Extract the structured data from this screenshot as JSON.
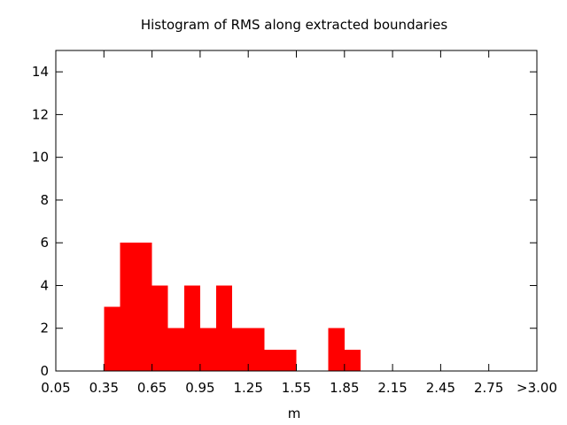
{
  "chart_data": {
    "type": "bar",
    "title": "Histogram of RMS along extracted boundaries",
    "xlabel": "m",
    "ylabel": "",
    "bar_color": "#ff0000",
    "bin_width": 0.1,
    "xlim": [
      0.05,
      3.05
    ],
    "ylim": [
      0,
      15
    ],
    "x_ticks": [
      {
        "value": 0.05,
        "label": "0.05"
      },
      {
        "value": 0.35,
        "label": "0.35"
      },
      {
        "value": 0.65,
        "label": "0.65"
      },
      {
        "value": 0.95,
        "label": "0.95"
      },
      {
        "value": 1.25,
        "label": "1.25"
      },
      {
        "value": 1.55,
        "label": "1.55"
      },
      {
        "value": 1.85,
        "label": "1.85"
      },
      {
        "value": 2.15,
        "label": "2.15"
      },
      {
        "value": 2.45,
        "label": "2.45"
      },
      {
        "value": 2.75,
        "label": "2.75"
      },
      {
        "value": 3.05,
        "label": ">3.00"
      }
    ],
    "y_ticks": [
      0,
      2,
      4,
      6,
      8,
      10,
      12,
      14
    ],
    "bins": [
      {
        "start": 0.35,
        "end": 0.45,
        "count": 3
      },
      {
        "start": 0.45,
        "end": 0.55,
        "count": 6
      },
      {
        "start": 0.55,
        "end": 0.65,
        "count": 6
      },
      {
        "start": 0.65,
        "end": 0.75,
        "count": 4
      },
      {
        "start": 0.75,
        "end": 0.85,
        "count": 2
      },
      {
        "start": 0.85,
        "end": 0.95,
        "count": 4
      },
      {
        "start": 0.95,
        "end": 1.05,
        "count": 2
      },
      {
        "start": 1.05,
        "end": 1.15,
        "count": 4
      },
      {
        "start": 1.15,
        "end": 1.25,
        "count": 2
      },
      {
        "start": 1.25,
        "end": 1.35,
        "count": 2
      },
      {
        "start": 1.35,
        "end": 1.45,
        "count": 1
      },
      {
        "start": 1.45,
        "end": 1.55,
        "count": 1
      },
      {
        "start": 1.55,
        "end": 1.65,
        "count": 0
      },
      {
        "start": 1.65,
        "end": 1.75,
        "count": 0
      },
      {
        "start": 1.75,
        "end": 1.85,
        "count": 2
      },
      {
        "start": 1.85,
        "end": 1.95,
        "count": 1
      }
    ]
  }
}
